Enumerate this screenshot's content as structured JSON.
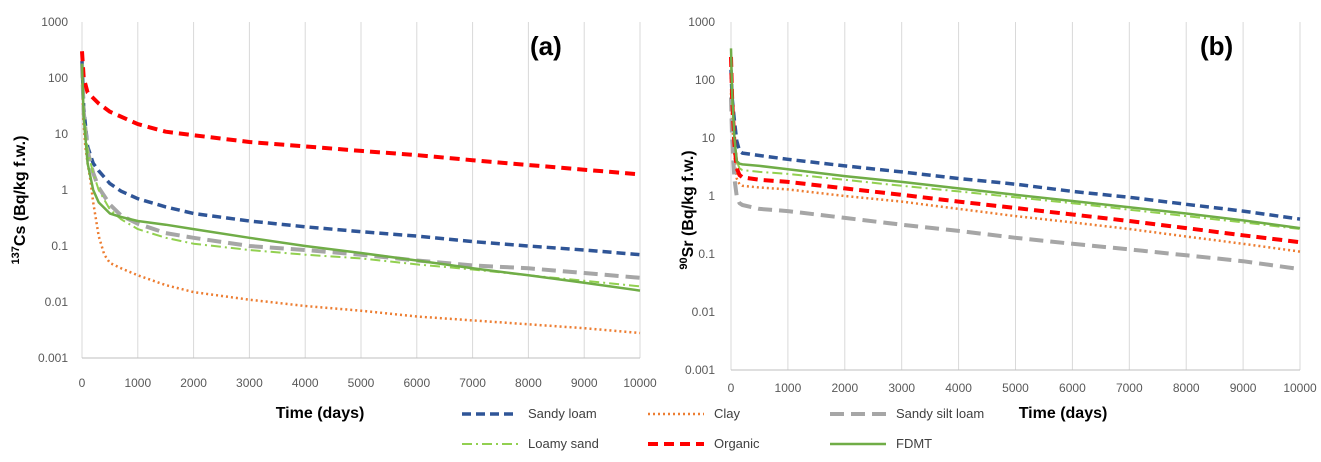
{
  "chart_data": [
    {
      "type": "line",
      "panel_label": "(a)",
      "xlabel": "Time (days)",
      "ylabel": "137Cs (Bq/kg f.w.)",
      "ylabel_sup": "137",
      "ylabel_main": "Cs (Bq/kg f.w.)",
      "xlim": [
        0,
        10000
      ],
      "ylim": [
        0.001,
        1000
      ],
      "yscale": "log",
      "grid": "vertical",
      "x_ticks": [
        "0",
        "1000",
        "2000",
        "3000",
        "4000",
        "5000",
        "6000",
        "7000",
        "8000",
        "9000",
        "10000"
      ],
      "y_ticks": [
        "0.001",
        "0.01",
        "0.1",
        "1",
        "10",
        "100",
        "1000"
      ],
      "series": [
        {
          "name": "Sandy loam",
          "x": [
            0,
            30,
            100,
            200,
            300,
            500,
            700,
            1000,
            1500,
            2000,
            3000,
            4000,
            5000,
            6000,
            7000,
            8000,
            9000,
            10000
          ],
          "y": [
            200,
            30,
            6,
            3,
            2.2,
            1.3,
            0.95,
            0.7,
            0.5,
            0.38,
            0.28,
            0.22,
            0.18,
            0.15,
            0.12,
            0.1,
            0.085,
            0.07
          ]
        },
        {
          "name": "Clay",
          "x": [
            0,
            20,
            60,
            100,
            150,
            200,
            300,
            400,
            500,
            700,
            1000,
            1500,
            2000,
            3000,
            4000,
            5000,
            6000,
            7000,
            8000,
            9000,
            10000
          ],
          "y": [
            150,
            20,
            6,
            3,
            1.5,
            0.6,
            0.15,
            0.07,
            0.05,
            0.04,
            0.03,
            0.02,
            0.015,
            0.011,
            0.0085,
            0.007,
            0.0055,
            0.0047,
            0.004,
            0.0034,
            0.0028
          ]
        },
        {
          "name": "Sandy silt loam",
          "x": [
            0,
            30,
            100,
            200,
            300,
            500,
            700,
            1000,
            1500,
            2000,
            3000,
            4000,
            5000,
            6000,
            7000,
            8000,
            9000,
            10000
          ],
          "y": [
            180,
            25,
            5,
            2,
            1.1,
            0.55,
            0.35,
            0.25,
            0.17,
            0.14,
            0.1,
            0.085,
            0.07,
            0.055,
            0.045,
            0.04,
            0.033,
            0.027
          ]
        },
        {
          "name": "Loamy sand",
          "x": [
            0,
            30,
            100,
            200,
            300,
            500,
            700,
            1000,
            1500,
            2000,
            3000,
            4000,
            5000,
            6000,
            7000,
            8000,
            9000,
            10000
          ],
          "y": [
            180,
            25,
            5,
            2,
            1,
            0.45,
            0.3,
            0.2,
            0.14,
            0.11,
            0.085,
            0.07,
            0.06,
            0.047,
            0.038,
            0.03,
            0.024,
            0.019
          ]
        },
        {
          "name": "Organic",
          "x": [
            0,
            30,
            100,
            300,
            500,
            1000,
            1500,
            2000,
            3000,
            4000,
            5000,
            6000,
            7000,
            8000,
            9000,
            10000
          ],
          "y": [
            300,
            100,
            55,
            35,
            25,
            15,
            11,
            9.5,
            7.2,
            6,
            5,
            4.2,
            3.4,
            2.8,
            2.3,
            1.9
          ]
        },
        {
          "name": "FDMT",
          "x": [
            0,
            30,
            100,
            200,
            300,
            500,
            700,
            1000,
            1500,
            2000,
            3000,
            4000,
            5000,
            6000,
            7000,
            8000,
            9000,
            10000
          ],
          "y": [
            180,
            20,
            3,
            1,
            0.6,
            0.38,
            0.33,
            0.28,
            0.24,
            0.2,
            0.14,
            0.1,
            0.075,
            0.055,
            0.04,
            0.03,
            0.022,
            0.016
          ]
        }
      ]
    },
    {
      "type": "line",
      "panel_label": "(b)",
      "xlabel": "Time (days)",
      "ylabel": "90Sr (Bq/kg f.w.)",
      "ylabel_sup": "90",
      "ylabel_main": "Sr (Bq/kg f.w.)",
      "xlim": [
        0,
        10000
      ],
      "ylim": [
        0.001,
        1000
      ],
      "yscale": "log",
      "grid": "vertical",
      "x_ticks": [
        "0",
        "1000",
        "2000",
        "3000",
        "4000",
        "5000",
        "6000",
        "7000",
        "8000",
        "9000",
        "10000"
      ],
      "y_ticks": [
        "0.001",
        "0.01",
        "0.1",
        "1",
        "10",
        "100",
        "1000"
      ],
      "series": [
        {
          "name": "Sandy loam",
          "x": [
            0,
            20,
            60,
            100,
            150,
            200,
            500,
            1000,
            2000,
            3000,
            4000,
            5000,
            6000,
            7000,
            8000,
            9000,
            10000
          ],
          "y": [
            150,
            50,
            20,
            9,
            6,
            5.5,
            5,
            4.3,
            3.3,
            2.6,
            2,
            1.6,
            1.2,
            0.95,
            0.72,
            0.55,
            0.4
          ]
        },
        {
          "name": "Clay",
          "x": [
            0,
            20,
            60,
            100,
            150,
            200,
            500,
            1000,
            2000,
            3000,
            4000,
            5000,
            6000,
            7000,
            8000,
            9000,
            10000
          ],
          "y": [
            60,
            20,
            5,
            2,
            1.6,
            1.5,
            1.4,
            1.3,
            1,
            0.8,
            0.6,
            0.45,
            0.35,
            0.27,
            0.2,
            0.15,
            0.11
          ]
        },
        {
          "name": "Sandy silt loam",
          "x": [
            0,
            20,
            60,
            100,
            150,
            200,
            500,
            1000,
            2000,
            3000,
            4000,
            5000,
            6000,
            7000,
            8000,
            9000,
            10000
          ],
          "y": [
            50,
            10,
            2,
            1,
            0.75,
            0.7,
            0.6,
            0.55,
            0.42,
            0.32,
            0.25,
            0.19,
            0.15,
            0.12,
            0.095,
            0.075,
            0.055
          ]
        },
        {
          "name": "Loamy sand",
          "x": [
            0,
            20,
            60,
            100,
            150,
            200,
            500,
            1000,
            2000,
            3000,
            4000,
            5000,
            6000,
            7000,
            8000,
            9000,
            10000
          ],
          "y": [
            200,
            40,
            10,
            4,
            3,
            2.8,
            2.6,
            2.4,
            1.9,
            1.5,
            1.2,
            0.95,
            0.75,
            0.58,
            0.45,
            0.35,
            0.27
          ]
        },
        {
          "name": "Organic",
          "x": [
            0,
            20,
            60,
            100,
            150,
            200,
            500,
            1000,
            2000,
            3000,
            4000,
            5000,
            6000,
            7000,
            8000,
            9000,
            10000
          ],
          "y": [
            250,
            50,
            8,
            3,
            2.3,
            2.1,
            1.9,
            1.75,
            1.35,
            1.05,
            0.8,
            0.62,
            0.48,
            0.37,
            0.28,
            0.21,
            0.16
          ]
        },
        {
          "name": "FDMT",
          "x": [
            0,
            20,
            60,
            100,
            150,
            200,
            500,
            1000,
            2000,
            3000,
            4000,
            5000,
            6000,
            7000,
            8000,
            9000,
            10000
          ],
          "y": [
            350,
            60,
            10,
            4,
            3.6,
            3.5,
            3.3,
            2.9,
            2.2,
            1.75,
            1.35,
            1.05,
            0.82,
            0.64,
            0.5,
            0.38,
            0.28
          ]
        }
      ]
    }
  ],
  "legend": {
    "items": [
      {
        "label": "Sandy loam",
        "color": "#2F5597",
        "dash": "9,5",
        "width": 3.5
      },
      {
        "label": "Clay",
        "color": "#ED7D31",
        "dash": "2,3",
        "width": 2.5
      },
      {
        "label": "Sandy silt loam",
        "color": "#A6A6A6",
        "dash": "14,7",
        "width": 4
      },
      {
        "label": "Loamy sand",
        "color": "#92D050",
        "dash": "10,4,2,4",
        "width": 2
      },
      {
        "label": "Organic",
        "color": "#FF0000",
        "dash": "10,6",
        "width": 4
      },
      {
        "label": "FDMT",
        "color": "#70AD47",
        "dash": "",
        "width": 2.5
      }
    ]
  }
}
